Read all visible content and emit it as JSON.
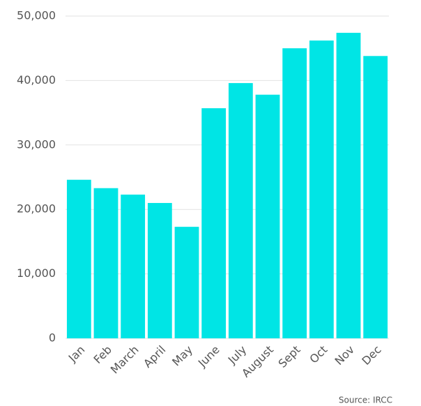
{
  "chart_data": {
    "type": "bar",
    "source": "Source: IRCC",
    "categories": [
      "Jan",
      "Feb",
      "March",
      "April",
      "May",
      "June",
      "July",
      "August",
      "Sept",
      "Oct",
      "Nov",
      "Dec"
    ],
    "values": [
      24600,
      23300,
      22300,
      21000,
      17300,
      35700,
      39600,
      37800,
      45000,
      46200,
      47400,
      43800
    ],
    "color": "#00e5e5",
    "ylim": [
      0,
      50000
    ],
    "yticks": [
      0,
      {
        "value": 10000,
        "label": "10,000"
      },
      {
        "value": 20000,
        "label": "20,000"
      },
      {
        "value": 30000,
        "label": "30,000"
      },
      {
        "value": 40000,
        "label": "40,000"
      },
      {
        "value": 50000,
        "label": "50,000"
      }
    ],
    "grid": true
  }
}
